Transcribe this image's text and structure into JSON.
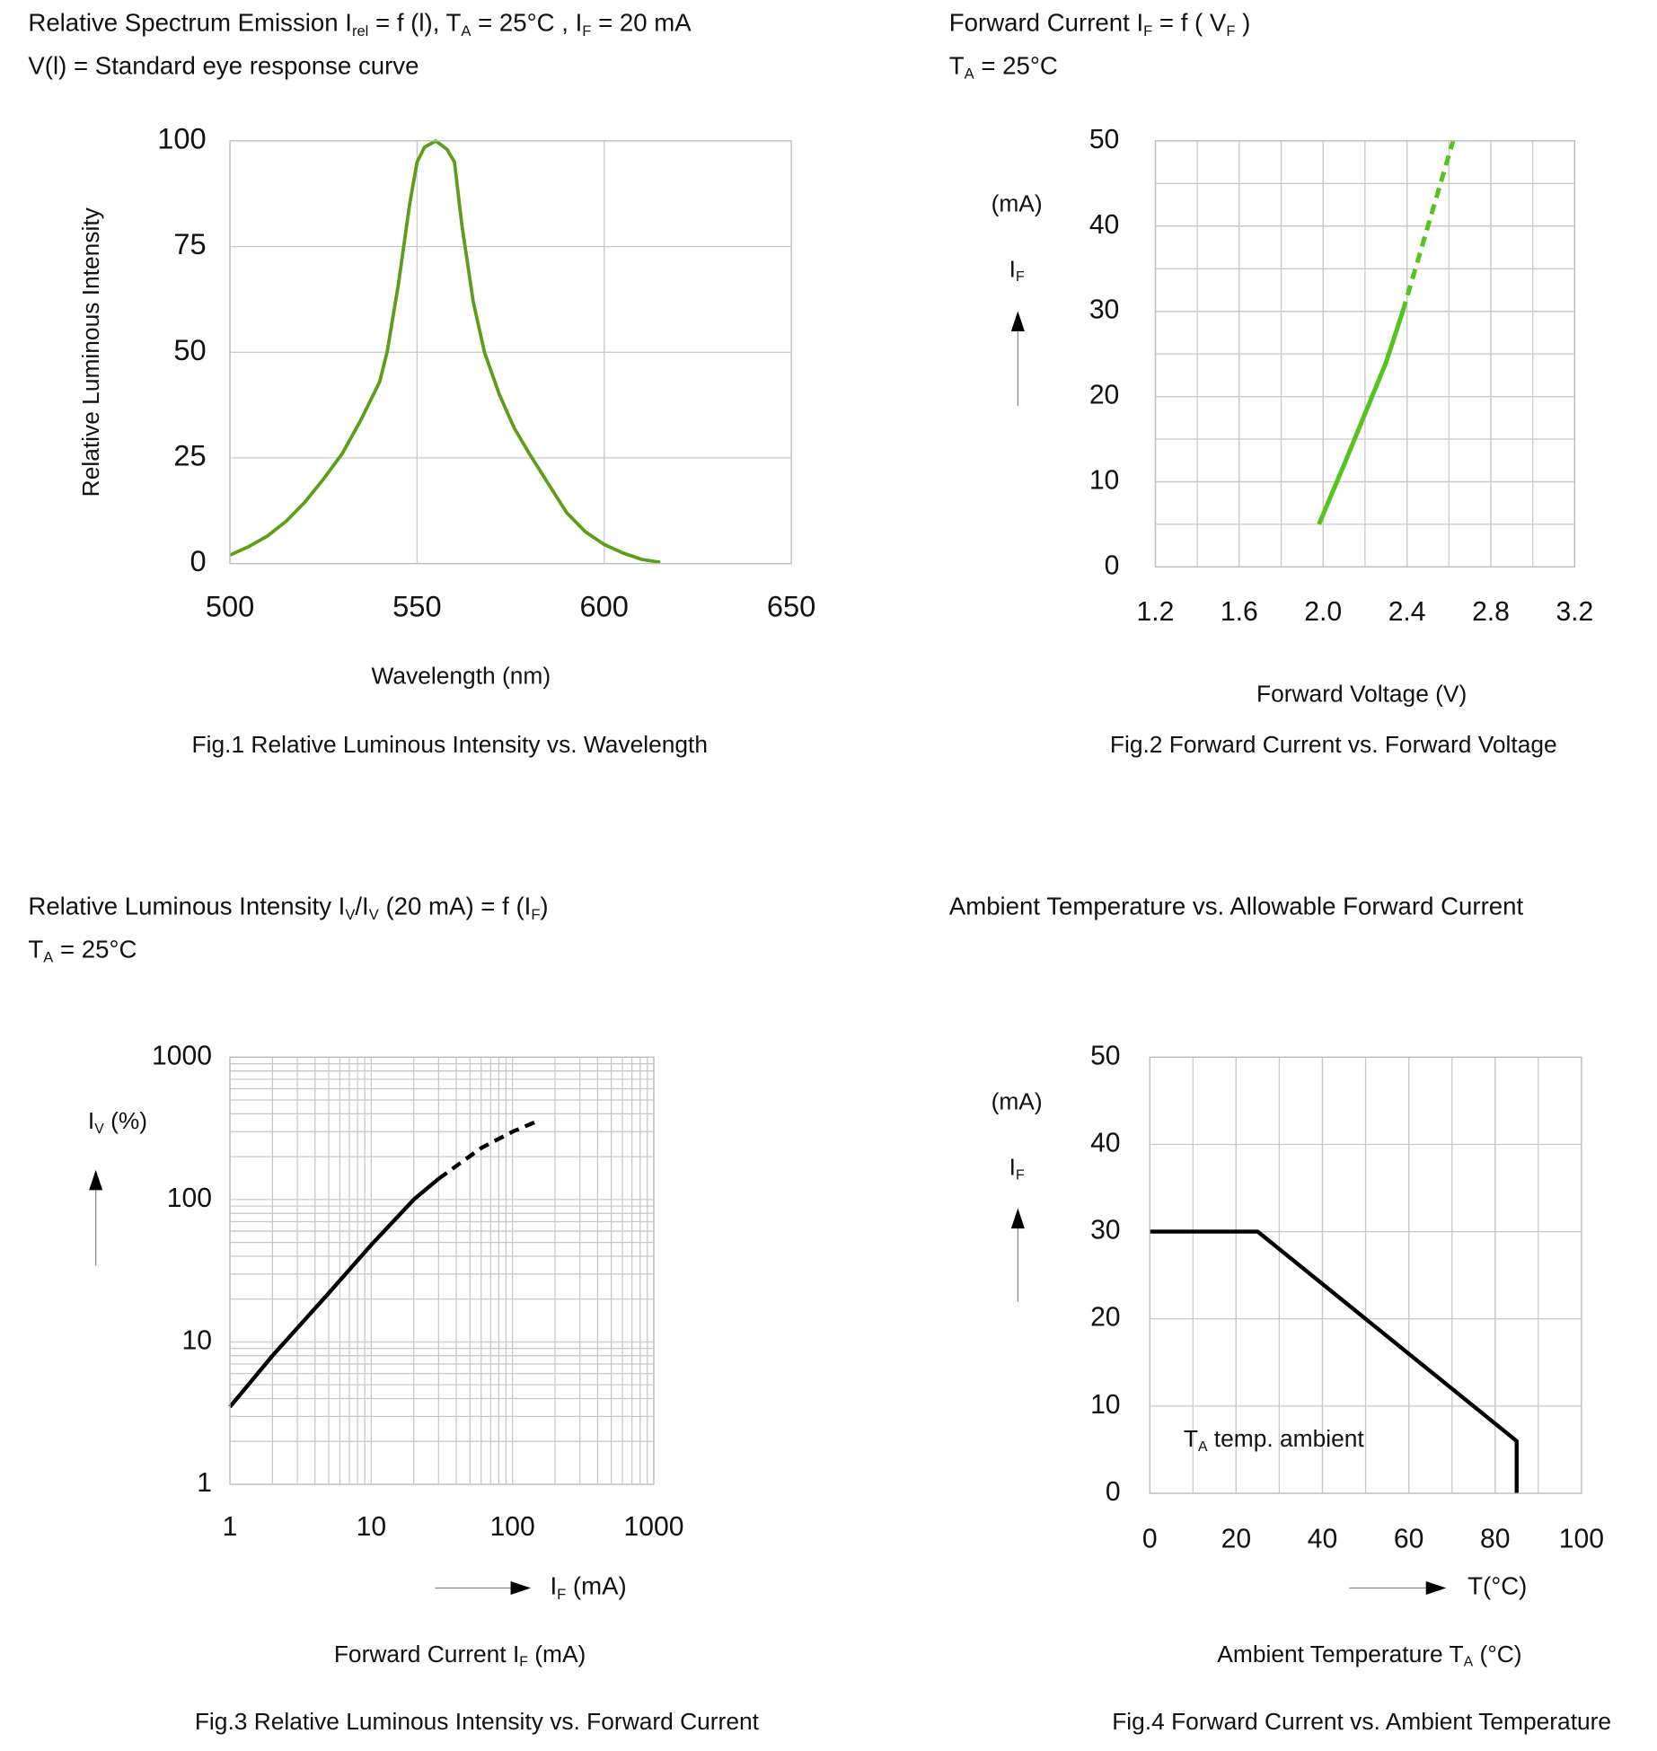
{
  "chart_data": [
    {
      "type": "line",
      "title": [
        [
          "Relative Spectrum Emission I",
          "rel",
          " = f (l), T",
          "A",
          " = 25°C , I",
          "F",
          " = 20 mA"
        ],
        [
          "V(l) = Standard eye response curve"
        ]
      ],
      "y_label": "Relative Luminous Intensity",
      "x_label": "Wavelength (nm)",
      "caption": "Fig.1 Relative Luminous Intensity vs. Wavelength",
      "x": [
        500,
        505,
        510,
        515,
        520,
        525,
        530,
        535,
        540,
        542,
        545,
        548,
        550,
        552,
        555,
        558,
        560,
        562,
        565,
        568,
        572,
        576,
        580,
        585,
        590,
        595,
        600,
        605,
        610,
        615
      ],
      "values": [
        2,
        4,
        6.5,
        10,
        14.5,
        20,
        26,
        34,
        43,
        50,
        66,
        85,
        95,
        98.5,
        100,
        98,
        95,
        80,
        62,
        50,
        40,
        32,
        26,
        19,
        12,
        7.5,
        4.5,
        2.5,
        1,
        0.3
      ],
      "color": "#5a9e1a",
      "xlim": [
        500,
        650
      ],
      "xticks": [
        500,
        550,
        600,
        650
      ],
      "ylim": [
        0,
        100
      ],
      "yticks": [
        0,
        25,
        50,
        75,
        100
      ],
      "grid": true
    },
    {
      "type": "line",
      "title": [
        [
          "Forward Current I",
          "F",
          " = f ( V",
          "F",
          " )"
        ],
        [
          "T",
          "A",
          " = 25°C"
        ]
      ],
      "y_unit": "(mA)",
      "y_symbol": [
        "I",
        "F"
      ],
      "x_label": "Forward Voltage (V)",
      "caption": "Fig.2 Forward Current vs. Forward Voltage",
      "series": [
        {
          "x": [
            1.98,
            2.1,
            2.2,
            2.3,
            2.38
          ],
          "values": [
            5,
            12,
            18,
            24,
            30
          ],
          "style": "solid"
        },
        {
          "x": [
            2.38,
            2.5,
            2.62
          ],
          "values": [
            30,
            40,
            50
          ],
          "style": "dashed"
        }
      ],
      "color": "#55c41f",
      "xlim": [
        1.2,
        3.2
      ],
      "xticks": [
        1.2,
        1.6,
        {
          "value": 2,
          "label": "2.0"
        },
        2.4,
        2.8,
        3.2
      ],
      "ylim": [
        0,
        50
      ],
      "yticks": [
        0,
        10,
        20,
        30,
        40,
        50
      ],
      "grid": true,
      "xgrid_step": 0.2,
      "ygrid_step": 5
    },
    {
      "type": "line",
      "title": [
        [
          "Relative Luminous Intensity I",
          "V",
          "/I",
          "V",
          " (20 mA) = f (I",
          "F",
          ")"
        ],
        [
          "T",
          "A",
          " = 25°C"
        ]
      ],
      "y_symbol": [
        "I",
        "V",
        " (%)"
      ],
      "x_symbol": [
        "I",
        "F",
        " (mA)"
      ],
      "x_label": [
        "Forward Current I",
        "F",
        " (mA)"
      ],
      "caption": "Fig.3 Relative Luminous Intensity vs. Forward Current",
      "series": [
        {
          "x": [
            1,
            2,
            5,
            10,
            20,
            30
          ],
          "values": [
            3.5,
            8,
            22,
            48,
            100,
            140
          ],
          "style": "solid"
        },
        {
          "x": [
            30,
            60,
            100,
            150
          ],
          "values": [
            140,
            230,
            300,
            355
          ],
          "style": "dashed"
        }
      ],
      "color": "#000000",
      "log_x": true,
      "log_y": true,
      "xlim": [
        1,
        1000
      ],
      "xticks": [
        1,
        10,
        100,
        1000
      ],
      "ylim": [
        1,
        1000
      ],
      "yticks": [
        1,
        10,
        100,
        1000
      ],
      "grid": true
    },
    {
      "type": "line",
      "title": [
        [
          "Ambient Temperature vs. Allowable Forward Current"
        ]
      ],
      "y_unit": "(mA)",
      "y_symbol": [
        "I",
        "F"
      ],
      "x_symbol": [
        "T(°C)"
      ],
      "x_label": [
        "Ambient Temperature T",
        "A",
        " (°C)"
      ],
      "annotation": [
        "T",
        "A",
        " temp. ambient"
      ],
      "caption": "Fig.4 Forward Current vs. Ambient Temperature",
      "x": [
        0,
        25,
        85,
        85
      ],
      "values": [
        30,
        30,
        6,
        0
      ],
      "color": "#000000",
      "xlim": [
        0,
        100
      ],
      "xticks": [
        0,
        20,
        40,
        60,
        80,
        100
      ],
      "xgrid_step": 10,
      "ylim": [
        0,
        50
      ],
      "yticks": [
        0,
        10,
        20,
        30,
        40,
        50
      ],
      "grid": true
    }
  ]
}
